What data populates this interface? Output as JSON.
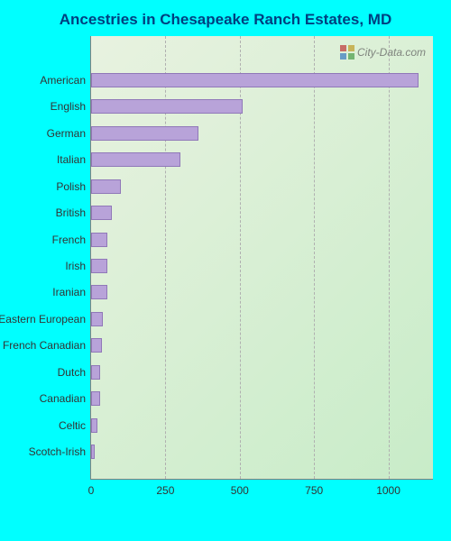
{
  "chart": {
    "type": "bar-horizontal",
    "title": "Ancestries in Chesapeake Ranch Estates, MD",
    "title_color": "#004080",
    "title_fontsize": 17,
    "background_page": "#00ffff",
    "plot_gradient_from": "#e8f2e0",
    "plot_gradient_to": "#c8ecc8",
    "bar_color": "#b8a3d9",
    "bar_border_color": "#9078b8",
    "axis_color": "#808080",
    "grid_style": "dashed",
    "label_color": "#333333",
    "label_fontsize": 12,
    "xlim": [
      0,
      1150
    ],
    "xticks": [
      0,
      250,
      500,
      750,
      1000
    ],
    "categories": [
      "American",
      "English",
      "German",
      "Italian",
      "Polish",
      "British",
      "French",
      "Irish",
      "Iranian",
      "Eastern European",
      "French Canadian",
      "Dutch",
      "Canadian",
      "Celtic",
      "Scotch-Irish"
    ],
    "values": [
      1100,
      510,
      360,
      300,
      100,
      70,
      55,
      55,
      55,
      40,
      35,
      30,
      30,
      22,
      12
    ],
    "watermark": {
      "text": "City-Data.com",
      "icon_colors": [
        "#c04040",
        "#c0a030",
        "#4080c0",
        "#50a050"
      ]
    }
  }
}
